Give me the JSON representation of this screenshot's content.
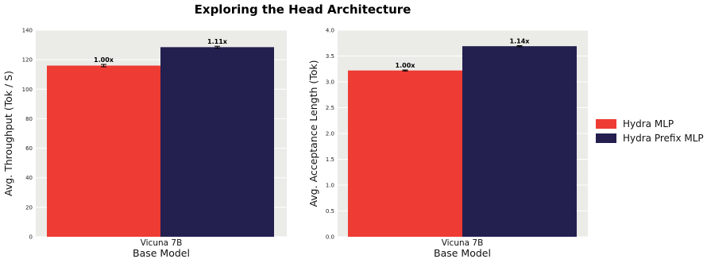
{
  "figure": {
    "title": "Exploring the Head Architecture"
  },
  "legend": {
    "placement": "right",
    "entries": [
      {
        "label": "Hydra MLP",
        "color": "#EE3B33"
      },
      {
        "label": "Hydra Prefix MLP",
        "color": "#231F4F"
      }
    ]
  },
  "chart_data": [
    {
      "type": "bar",
      "xlabel": "Base Model",
      "ylabel": "Avg. Throughput (Tok / S)",
      "categories": [
        "Vicuna 7B"
      ],
      "ylim": [
        0,
        140
      ],
      "yticks": [
        0,
        20,
        40,
        60,
        80,
        100,
        120,
        140
      ],
      "ytick_labels": [
        "0",
        "20",
        "40",
        "60",
        "80",
        "100",
        "120",
        "140"
      ],
      "grid": true,
      "series": [
        {
          "name": "Hydra MLP",
          "values": [
            116
          ],
          "error": [
            0.8
          ],
          "data_labels": [
            "1.00x"
          ],
          "color": "#EE3B33"
        },
        {
          "name": "Hydra Prefix MLP",
          "values": [
            128.5
          ],
          "error": [
            0.6
          ],
          "data_labels": [
            "1.11x"
          ],
          "color": "#231F4F"
        }
      ]
    },
    {
      "type": "bar",
      "xlabel": "Base Model",
      "ylabel": "Avg. Acceptance Length (Tok)",
      "categories": [
        "Vicuna 7B"
      ],
      "ylim": [
        0,
        4.0
      ],
      "yticks": [
        0,
        0.5,
        1.0,
        1.5,
        2.0,
        2.5,
        3.0,
        3.5,
        4.0
      ],
      "ytick_labels": [
        "0.0",
        "0.5",
        "1.0",
        "1.5",
        "2.0",
        "2.5",
        "3.0",
        "3.5",
        "4.0"
      ],
      "grid": true,
      "series": [
        {
          "name": "Hydra MLP",
          "values": [
            3.22
          ],
          "error": [
            0.01
          ],
          "data_labels": [
            "1.00x"
          ],
          "color": "#EE3B33"
        },
        {
          "name": "Hydra Prefix MLP",
          "values": [
            3.69
          ],
          "error": [
            0.01
          ],
          "data_labels": [
            "1.14x"
          ],
          "color": "#231F4F"
        }
      ]
    }
  ]
}
